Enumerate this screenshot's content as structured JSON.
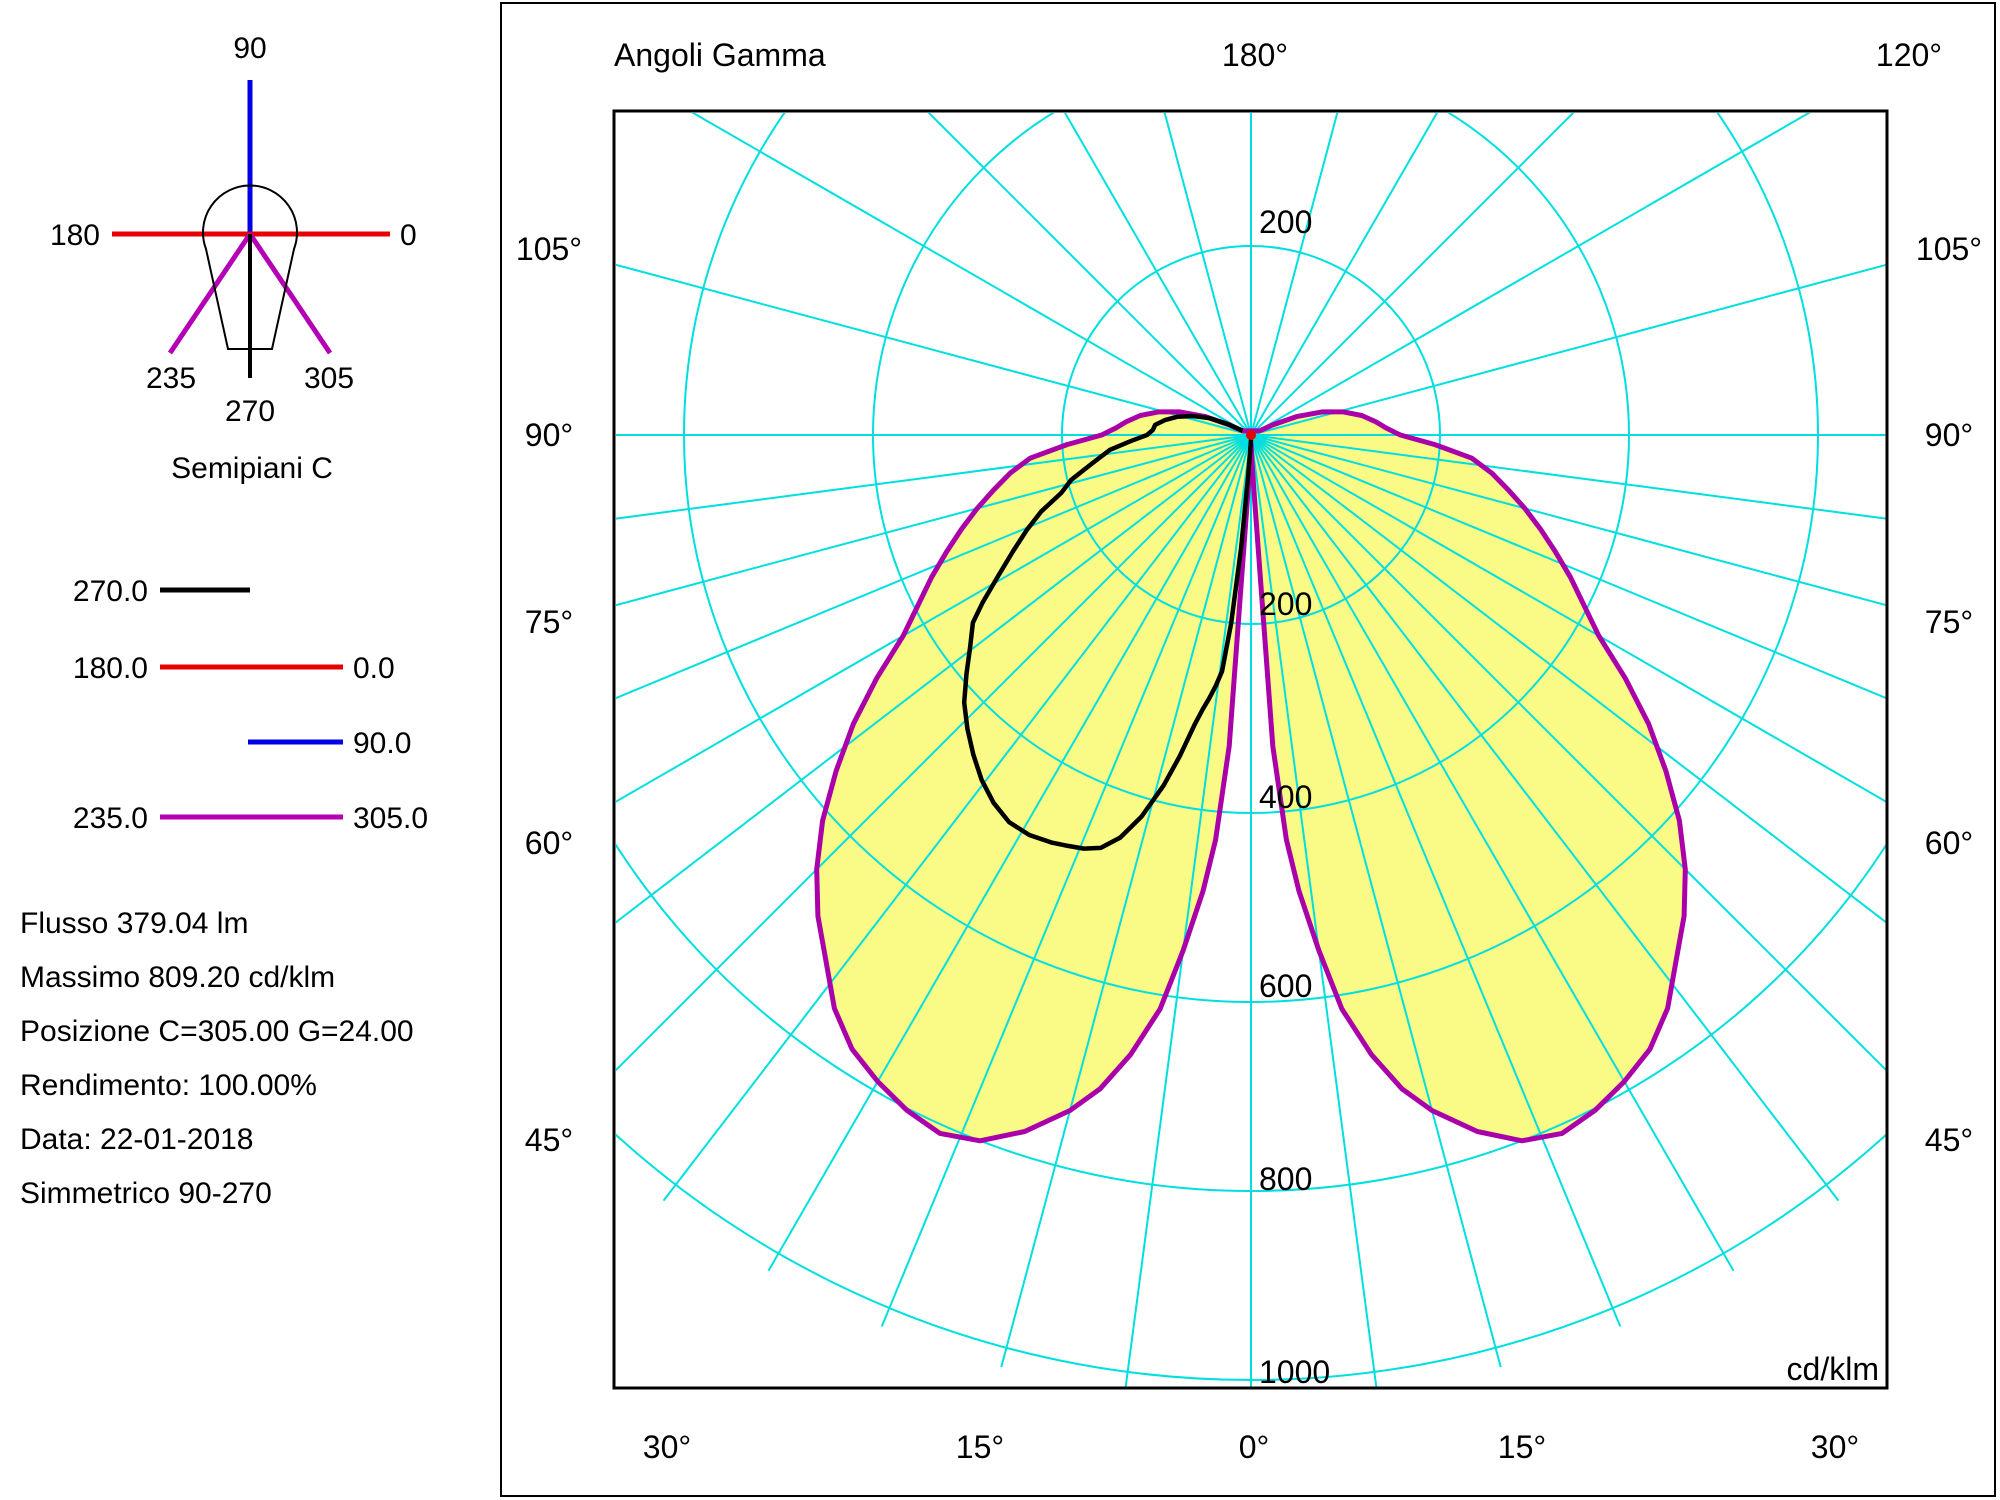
{
  "left_panel": {
    "diagram": {
      "title": "Semipiani C",
      "label_90": "90",
      "label_180": "180",
      "label_0": "0",
      "label_235": "235",
      "label_305": "305",
      "label_270": "270"
    },
    "legend": {
      "rows": [
        {
          "left": "270.0",
          "right": "",
          "color": "#000000"
        },
        {
          "left": "180.0",
          "right": "0.0",
          "color": "#e60000"
        },
        {
          "left": "",
          "right": "90.0",
          "color": "#0000e6"
        },
        {
          "left": "235.0",
          "right": "305.0",
          "color": "#aa00aa"
        }
      ]
    },
    "info": {
      "flusso": "Flusso 379.04  lm",
      "massimo": "Massimo 809.20  cd/klm",
      "posizione": "Posizione C=305.00 G=24.00",
      "rendimento": "Rendimento: 100.00%",
      "data": "Data: 22-01-2018",
      "simmetrico": "Simmetrico 90-270"
    }
  },
  "chart": {
    "title": "Angoli Gamma",
    "unit_label": "cd/klm",
    "top_labels": [
      "180°",
      "120°"
    ],
    "side_labels": [
      "105°",
      "90°",
      "75°",
      "60°",
      "45°"
    ],
    "bottom_labels": [
      "30°",
      "15°",
      "0°",
      "15°",
      "30°"
    ],
    "radial_labels": [
      "200",
      "200",
      "400",
      "600",
      "800",
      "1000"
    ],
    "colors": {
      "grid": "#00dfdf",
      "curve_c235_305": "#aa00aa",
      "fill": "#fafa87",
      "curve_c270": "#000000",
      "curve_c0_180": "#e60000",
      "curve_c90": "#0000e6"
    }
  },
  "chart_data": {
    "type": "polar-photometric",
    "title": "Angoli Gamma",
    "unit": "cd/klm",
    "flux_lm": 379.04,
    "max_cd_klm": 809.2,
    "max_position": {
      "C": 305.0,
      "G": 24.0
    },
    "efficiency_pct": 100.0,
    "date": "22-01-2018",
    "symmetry": "90-270",
    "radial_ticks": [
      200,
      400,
      600,
      800,
      1000
    ],
    "r_axis_max": 1000,
    "gamma_tick_step_below_horizontal_deg": 7.5,
    "gamma_tick_step_above_horizontal_deg": 15,
    "gamma_axis_labels_deg": [
      0,
      15,
      30,
      45,
      60,
      75,
      90,
      105,
      120,
      180
    ],
    "series": [
      {
        "name": "C 235.0 - 305.0",
        "color": "#aa00aa",
        "fill": "#fafa87",
        "mirror": true,
        "points_gamma_cd": [
          [
            0,
            10
          ],
          [
            2,
            25
          ],
          [
            3,
            60
          ],
          [
            4,
            330
          ],
          [
            5,
            430
          ],
          [
            6,
            485
          ],
          [
            7.5,
            550
          ],
          [
            9,
            615
          ],
          [
            11,
            668
          ],
          [
            13,
            710
          ],
          [
            15,
            740
          ],
          [
            18,
            775
          ],
          [
            21,
            800
          ],
          [
            24,
            809
          ],
          [
            27,
            802
          ],
          [
            30,
            790
          ],
          [
            33,
            775
          ],
          [
            36,
            750
          ],
          [
            39,
            715
          ],
          [
            42,
            685
          ],
          [
            45,
            650
          ],
          [
            48,
            610
          ],
          [
            51,
            565
          ],
          [
            54,
            520
          ],
          [
            57,
            472
          ],
          [
            60,
            425
          ],
          [
            63,
            395
          ],
          [
            66,
            370
          ],
          [
            69,
            345
          ],
          [
            72,
            322
          ],
          [
            75,
            300
          ],
          [
            78,
            278
          ],
          [
            81,
            258
          ],
          [
            84,
            235
          ],
          [
            87,
            195
          ],
          [
            90,
            158
          ],
          [
            93,
            143
          ],
          [
            96,
            133
          ],
          [
            100,
            119
          ],
          [
            104,
            101
          ],
          [
            108,
            79
          ],
          [
            112,
            52
          ],
          [
            115,
            25
          ],
          [
            116,
            10
          ]
        ]
      },
      {
        "name": "C 270.0",
        "color": "#000000",
        "side": "left",
        "points_gamma_cd": [
          [
            0,
            5
          ],
          [
            3,
            18
          ],
          [
            4,
            45
          ],
          [
            5,
            120
          ],
          [
            6,
            200
          ],
          [
            7,
            252
          ],
          [
            8,
            268
          ],
          [
            9,
            282
          ],
          [
            10,
            295
          ],
          [
            11,
            312
          ],
          [
            12.5,
            348
          ],
          [
            14,
            382
          ],
          [
            16,
            420
          ],
          [
            18,
            448
          ],
          [
            20,
            465
          ],
          [
            22,
            472
          ],
          [
            24,
            476
          ],
          [
            26,
            480
          ],
          [
            29,
            484
          ],
          [
            32,
            483
          ],
          [
            35,
            475
          ],
          [
            38,
            463
          ],
          [
            41,
            448
          ],
          [
            44,
            432
          ],
          [
            47,
            415
          ],
          [
            50,
            393
          ],
          [
            53,
            372
          ],
          [
            56,
            355
          ],
          [
            58,
            335
          ],
          [
            61,
            305
          ],
          [
            64,
            280
          ],
          [
            67,
            258
          ],
          [
            70,
            236
          ],
          [
            73,
            210
          ],
          [
            76,
            196
          ],
          [
            80,
            170
          ],
          [
            84,
            150
          ],
          [
            87,
            128
          ],
          [
            90,
            110
          ],
          [
            93,
            104
          ],
          [
            96,
            102
          ],
          [
            100,
            92
          ],
          [
            104,
            80
          ],
          [
            108,
            65
          ],
          [
            112,
            48
          ],
          [
            115,
            28
          ],
          [
            117,
            10
          ]
        ]
      },
      {
        "name": "C 180.0 - 0.0",
        "color": "#e60000",
        "center_dot": true,
        "points_gamma_cd": []
      },
      {
        "name": "C 90.0",
        "color": "#0000e6",
        "hidden": true,
        "points_gamma_cd": []
      }
    ]
  }
}
